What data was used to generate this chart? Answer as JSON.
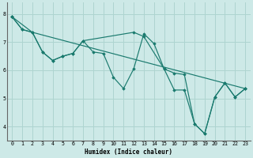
{
  "xlabel": "Humidex (Indice chaleur)",
  "xlim": [
    -0.5,
    23.5
  ],
  "ylim": [
    3.5,
    8.4
  ],
  "xticks": [
    0,
    1,
    2,
    3,
    4,
    5,
    6,
    7,
    8,
    9,
    10,
    11,
    12,
    13,
    14,
    15,
    16,
    17,
    18,
    19,
    20,
    21,
    22,
    23
  ],
  "yticks": [
    4,
    5,
    6,
    7,
    8
  ],
  "bg_color": "#cde9e7",
  "grid_color": "#aed4d0",
  "line_color": "#1a7a6e",
  "series": [
    {
      "x": [
        0,
        1,
        2,
        3,
        4,
        5,
        6,
        7,
        8,
        9,
        10,
        11,
        12,
        13,
        14,
        15,
        16,
        17,
        18,
        19,
        20,
        21,
        22,
        23
      ],
      "y": [
        7.9,
        7.45,
        7.35,
        6.65,
        6.35,
        6.5,
        6.6,
        7.05,
        6.65,
        6.6,
        5.75,
        5.35,
        6.05,
        7.3,
        6.95,
        6.05,
        5.9,
        5.85,
        4.1,
        3.75,
        5.05,
        5.55,
        5.05,
        5.35
      ]
    },
    {
      "x": [
        0,
        1,
        2,
        23
      ],
      "y": [
        7.9,
        7.45,
        7.35,
        5.35
      ]
    },
    {
      "x": [
        0,
        2,
        3,
        4,
        5,
        6,
        7,
        12,
        13,
        15,
        16,
        17,
        18,
        19,
        20,
        21,
        22,
        23
      ],
      "y": [
        7.9,
        7.35,
        6.65,
        6.35,
        6.5,
        6.6,
        7.05,
        7.35,
        7.2,
        6.05,
        5.3,
        5.3,
        4.1,
        3.75,
        5.05,
        5.55,
        5.05,
        5.35
      ]
    }
  ]
}
